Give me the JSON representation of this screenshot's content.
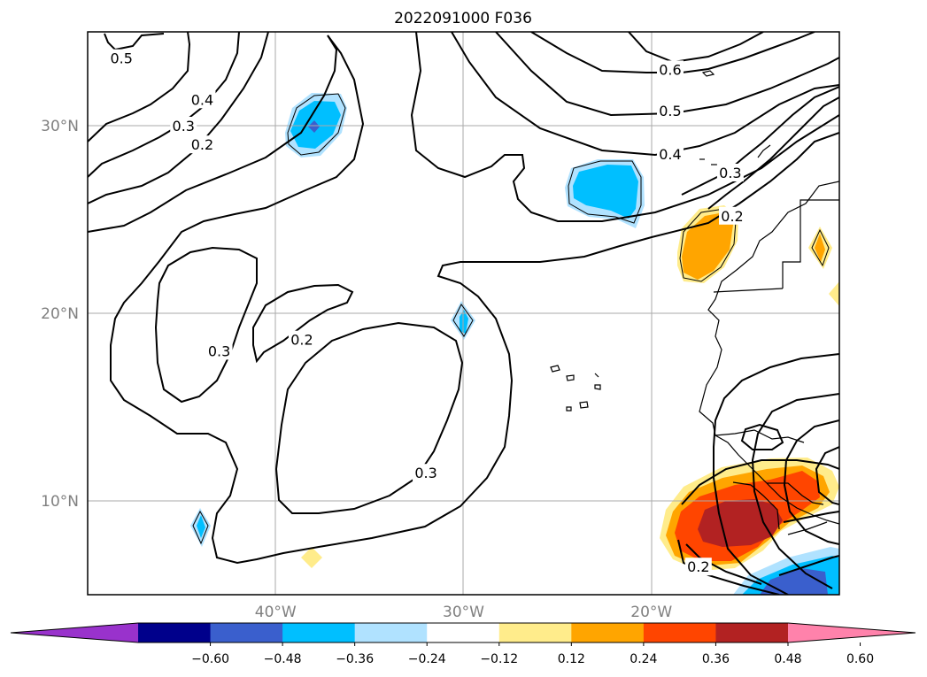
{
  "chart_data": {
    "type": "contour",
    "title": "2022091000 F036",
    "xlabel": "",
    "ylabel": "",
    "projection": "map",
    "lon_range": [
      -50,
      -10
    ],
    "lat_range": [
      5,
      35
    ],
    "grid": true,
    "lat_ticks": [
      {
        "value": 30,
        "label": "30°N"
      },
      {
        "value": 20,
        "label": "20°N"
      },
      {
        "value": 10,
        "label": "10°N"
      }
    ],
    "lon_ticks": [
      {
        "value": -40,
        "label": "40°W"
      },
      {
        "value": -30,
        "label": "30°W"
      },
      {
        "value": -20,
        "label": "20°W"
      }
    ],
    "contour_labels": [
      {
        "text": "0.5",
        "lon": -48.2,
        "lat": 33.6
      },
      {
        "text": "0.4",
        "lon": -43.9,
        "lat": 31.4
      },
      {
        "text": "0.3",
        "lon": -44.9,
        "lat": 30.0
      },
      {
        "text": "0.2",
        "lon": -43.9,
        "lat": 29.0
      },
      {
        "text": "0.3",
        "lon": -43.0,
        "lat": 18.0
      },
      {
        "text": "0.2",
        "lon": -38.6,
        "lat": 18.6
      },
      {
        "text": "0.3",
        "lon": -32.0,
        "lat": 11.5
      },
      {
        "text": "0.6",
        "lon": -19.0,
        "lat": 33.0
      },
      {
        "text": "0.5",
        "lon": -19.0,
        "lat": 30.8
      },
      {
        "text": "0.4",
        "lon": -19.0,
        "lat": 28.5
      },
      {
        "text": "0.3",
        "lon": -15.8,
        "lat": 27.5
      },
      {
        "text": "0.2",
        "lon": -15.7,
        "lat": 25.2
      },
      {
        "text": "0.2",
        "lon": -17.5,
        "lat": 6.5
      }
    ],
    "shaded_regions": [
      {
        "value_range": [
          -0.36,
          -0.24
        ],
        "center_lon": -38.0,
        "center_lat": 30.0
      },
      {
        "value_range": [
          -0.48,
          -0.36
        ],
        "center_lon": -38.0,
        "center_lat": 30.0
      },
      {
        "value_range": [
          -0.36,
          -0.24
        ],
        "center_lon": -22.0,
        "center_lat": 26.5
      },
      {
        "value_range": [
          -0.36,
          -0.24
        ],
        "center_lon": -30.0,
        "center_lat": 19.5
      },
      {
        "value_range": [
          -0.36,
          -0.24
        ],
        "center_lon": -44.0,
        "center_lat": 8.5
      },
      {
        "value_range": [
          0.24,
          0.36
        ],
        "center_lon": -16.5,
        "center_lat": 23.3
      },
      {
        "value_range": [
          0.24,
          0.36
        ],
        "center_lon": -10.5,
        "center_lat": 23.4
      },
      {
        "value_range": [
          0.48,
          0.6
        ],
        "center_lon": -15.0,
        "center_lat": 8.8
      },
      {
        "value_range": [
          0.36,
          0.48
        ],
        "center_lon": -13.0,
        "center_lat": 10.5
      },
      {
        "value_range": [
          -0.48,
          -0.36
        ],
        "center_lon": -12.5,
        "center_lat": 5.8
      }
    ],
    "colorbar": {
      "levels": [
        -0.6,
        -0.48,
        -0.36,
        -0.24,
        -0.12,
        0.12,
        0.24,
        0.36,
        0.48,
        0.6
      ],
      "tick_labels": [
        "−0.60",
        "−0.48",
        "−0.36",
        "−0.24",
        "−0.12",
        "0.12",
        "0.24",
        "0.36",
        "0.48",
        "0.60"
      ],
      "colors": [
        "#9932cc",
        "#00008b",
        "#3a5fcd",
        "#00bfff",
        "#b0e2ff",
        "#ffffff",
        "#ffec8b",
        "#ffa500",
        "#ff4500",
        "#b22222",
        "#ff82ab"
      ],
      "extend": "both"
    }
  }
}
